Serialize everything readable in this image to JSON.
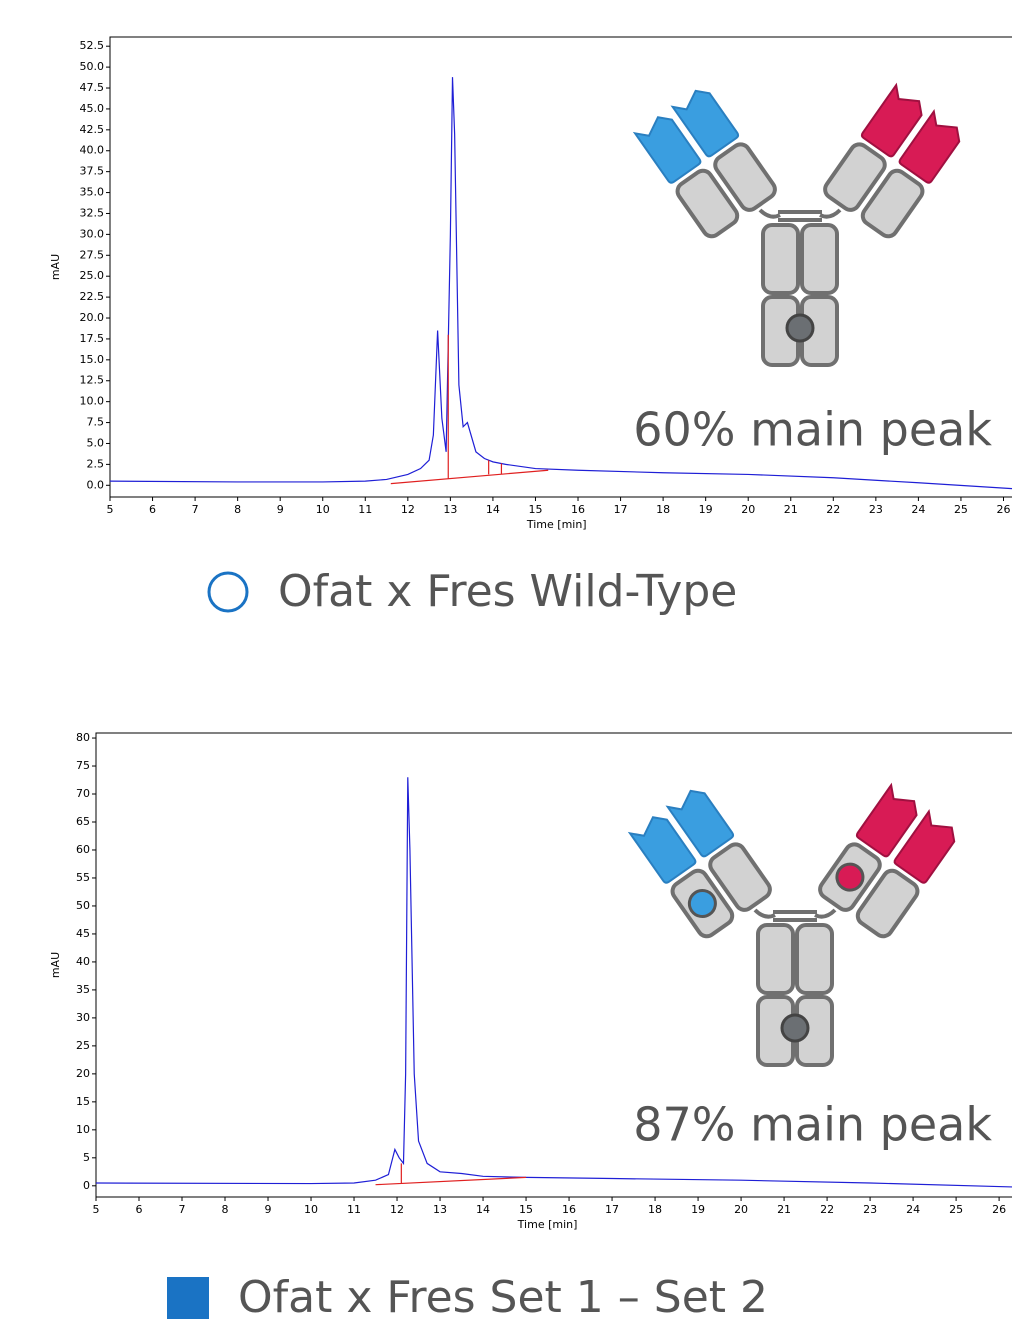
{
  "chart_data": [
    {
      "type": "line",
      "xlabel": "Time [min]",
      "ylabel": "mAU",
      "xlim": [
        5,
        26.2
      ],
      "xticks": [
        5,
        6,
        7,
        8,
        9,
        10,
        11,
        12,
        13,
        14,
        15,
        16,
        17,
        18,
        19,
        20,
        21,
        22,
        23,
        24,
        25,
        26
      ],
      "ylim": [
        -1.4,
        53.6
      ],
      "yticks": [
        {
          "value": 0,
          "label": "0.0"
        },
        2.5,
        {
          "value": 5,
          "label": "5.0"
        },
        7.5,
        {
          "value": 10,
          "label": "10.0"
        },
        12.5,
        {
          "value": 15,
          "label": "15.0"
        },
        17.5,
        {
          "value": 20,
          "label": "20.0"
        },
        22.5,
        {
          "value": 25,
          "label": "25.0"
        },
        27.5,
        {
          "value": 30,
          "label": "30.0"
        },
        32.5,
        {
          "value": 35,
          "label": "35.0"
        },
        37.5,
        {
          "value": 40,
          "label": "40.0"
        },
        42.5,
        {
          "value": 45,
          "label": "45.0"
        },
        47.5,
        {
          "value": 50,
          "label": "50.0"
        },
        52.5
      ],
      "series": [
        {
          "color": "#1f1fd6",
          "x": [
            5,
            8,
            10,
            11,
            11.5,
            12,
            12.3,
            12.5,
            12.6,
            12.7,
            12.8,
            12.9,
            13.0,
            13.05,
            13.1,
            13.2,
            13.3,
            13.4,
            13.6,
            13.8,
            14.0,
            14.3,
            15,
            16,
            18,
            20,
            22,
            24,
            26.2
          ],
          "values": [
            0.5,
            0.4,
            0.4,
            0.5,
            0.7,
            1.3,
            2.0,
            3.0,
            6,
            18.5,
            8,
            4,
            30,
            48.8,
            42,
            12,
            7,
            7.5,
            4,
            3.2,
            2.8,
            2.5,
            2.0,
            1.8,
            1.5,
            1.3,
            0.9,
            0.3,
            -0.4
          ]
        },
        {
          "color": "#e02020",
          "x": [
            11.6,
            15.3,
            15.3,
            12.95,
            12.95,
            12.95,
            13.9,
            13.9,
            13.9,
            14.2,
            14.2
          ],
          "values": [
            0.2,
            1.8,
            null,
            0.8,
            18,
            null,
            1.3,
            3,
            null,
            1.4,
            2.6
          ]
        }
      ],
      "annotation": "60% main peak",
      "legend": {
        "label": "Ofat x Fres Wild-Type",
        "marker": "circle-open",
        "color": "#1a73c4"
      }
    },
    {
      "type": "line",
      "xlabel": "Time [min]",
      "ylabel": "mAU",
      "xlim": [
        5,
        26.3
      ],
      "xticks": [
        5,
        6,
        7,
        8,
        9,
        10,
        11,
        12,
        13,
        14,
        15,
        16,
        17,
        18,
        19,
        20,
        21,
        22,
        23,
        24,
        25,
        26
      ],
      "ylim": [
        -2,
        80.9
      ],
      "yticks": [
        0,
        5,
        10,
        15,
        20,
        25,
        30,
        35,
        40,
        45,
        50,
        55,
        60,
        65,
        70,
        75,
        80
      ],
      "series": [
        {
          "color": "#1f1fd6",
          "x": [
            5,
            10,
            11,
            11.5,
            11.8,
            11.95,
            12.05,
            12.15,
            12.2,
            12.25,
            12.3,
            12.4,
            12.5,
            12.7,
            13,
            13.5,
            14,
            15,
            17,
            20,
            23,
            26.3
          ],
          "values": [
            0.5,
            0.4,
            0.5,
            1.0,
            2,
            6.5,
            5,
            4,
            20,
            73,
            60,
            20,
            8,
            4,
            2.5,
            2.2,
            1.7,
            1.5,
            1.3,
            1.0,
            0.5,
            -0.2
          ]
        },
        {
          "color": "#e02020",
          "x": [
            11.5,
            15.0,
            15.0,
            12.1,
            12.1
          ],
          "values": [
            0.2,
            1.5,
            null,
            0.5,
            4
          ]
        }
      ],
      "annotation": "87% main peak",
      "legend": {
        "label": "Ofat x Fres Set 1 – Set 2",
        "marker": "square",
        "color": "#1a73c4"
      }
    }
  ]
}
